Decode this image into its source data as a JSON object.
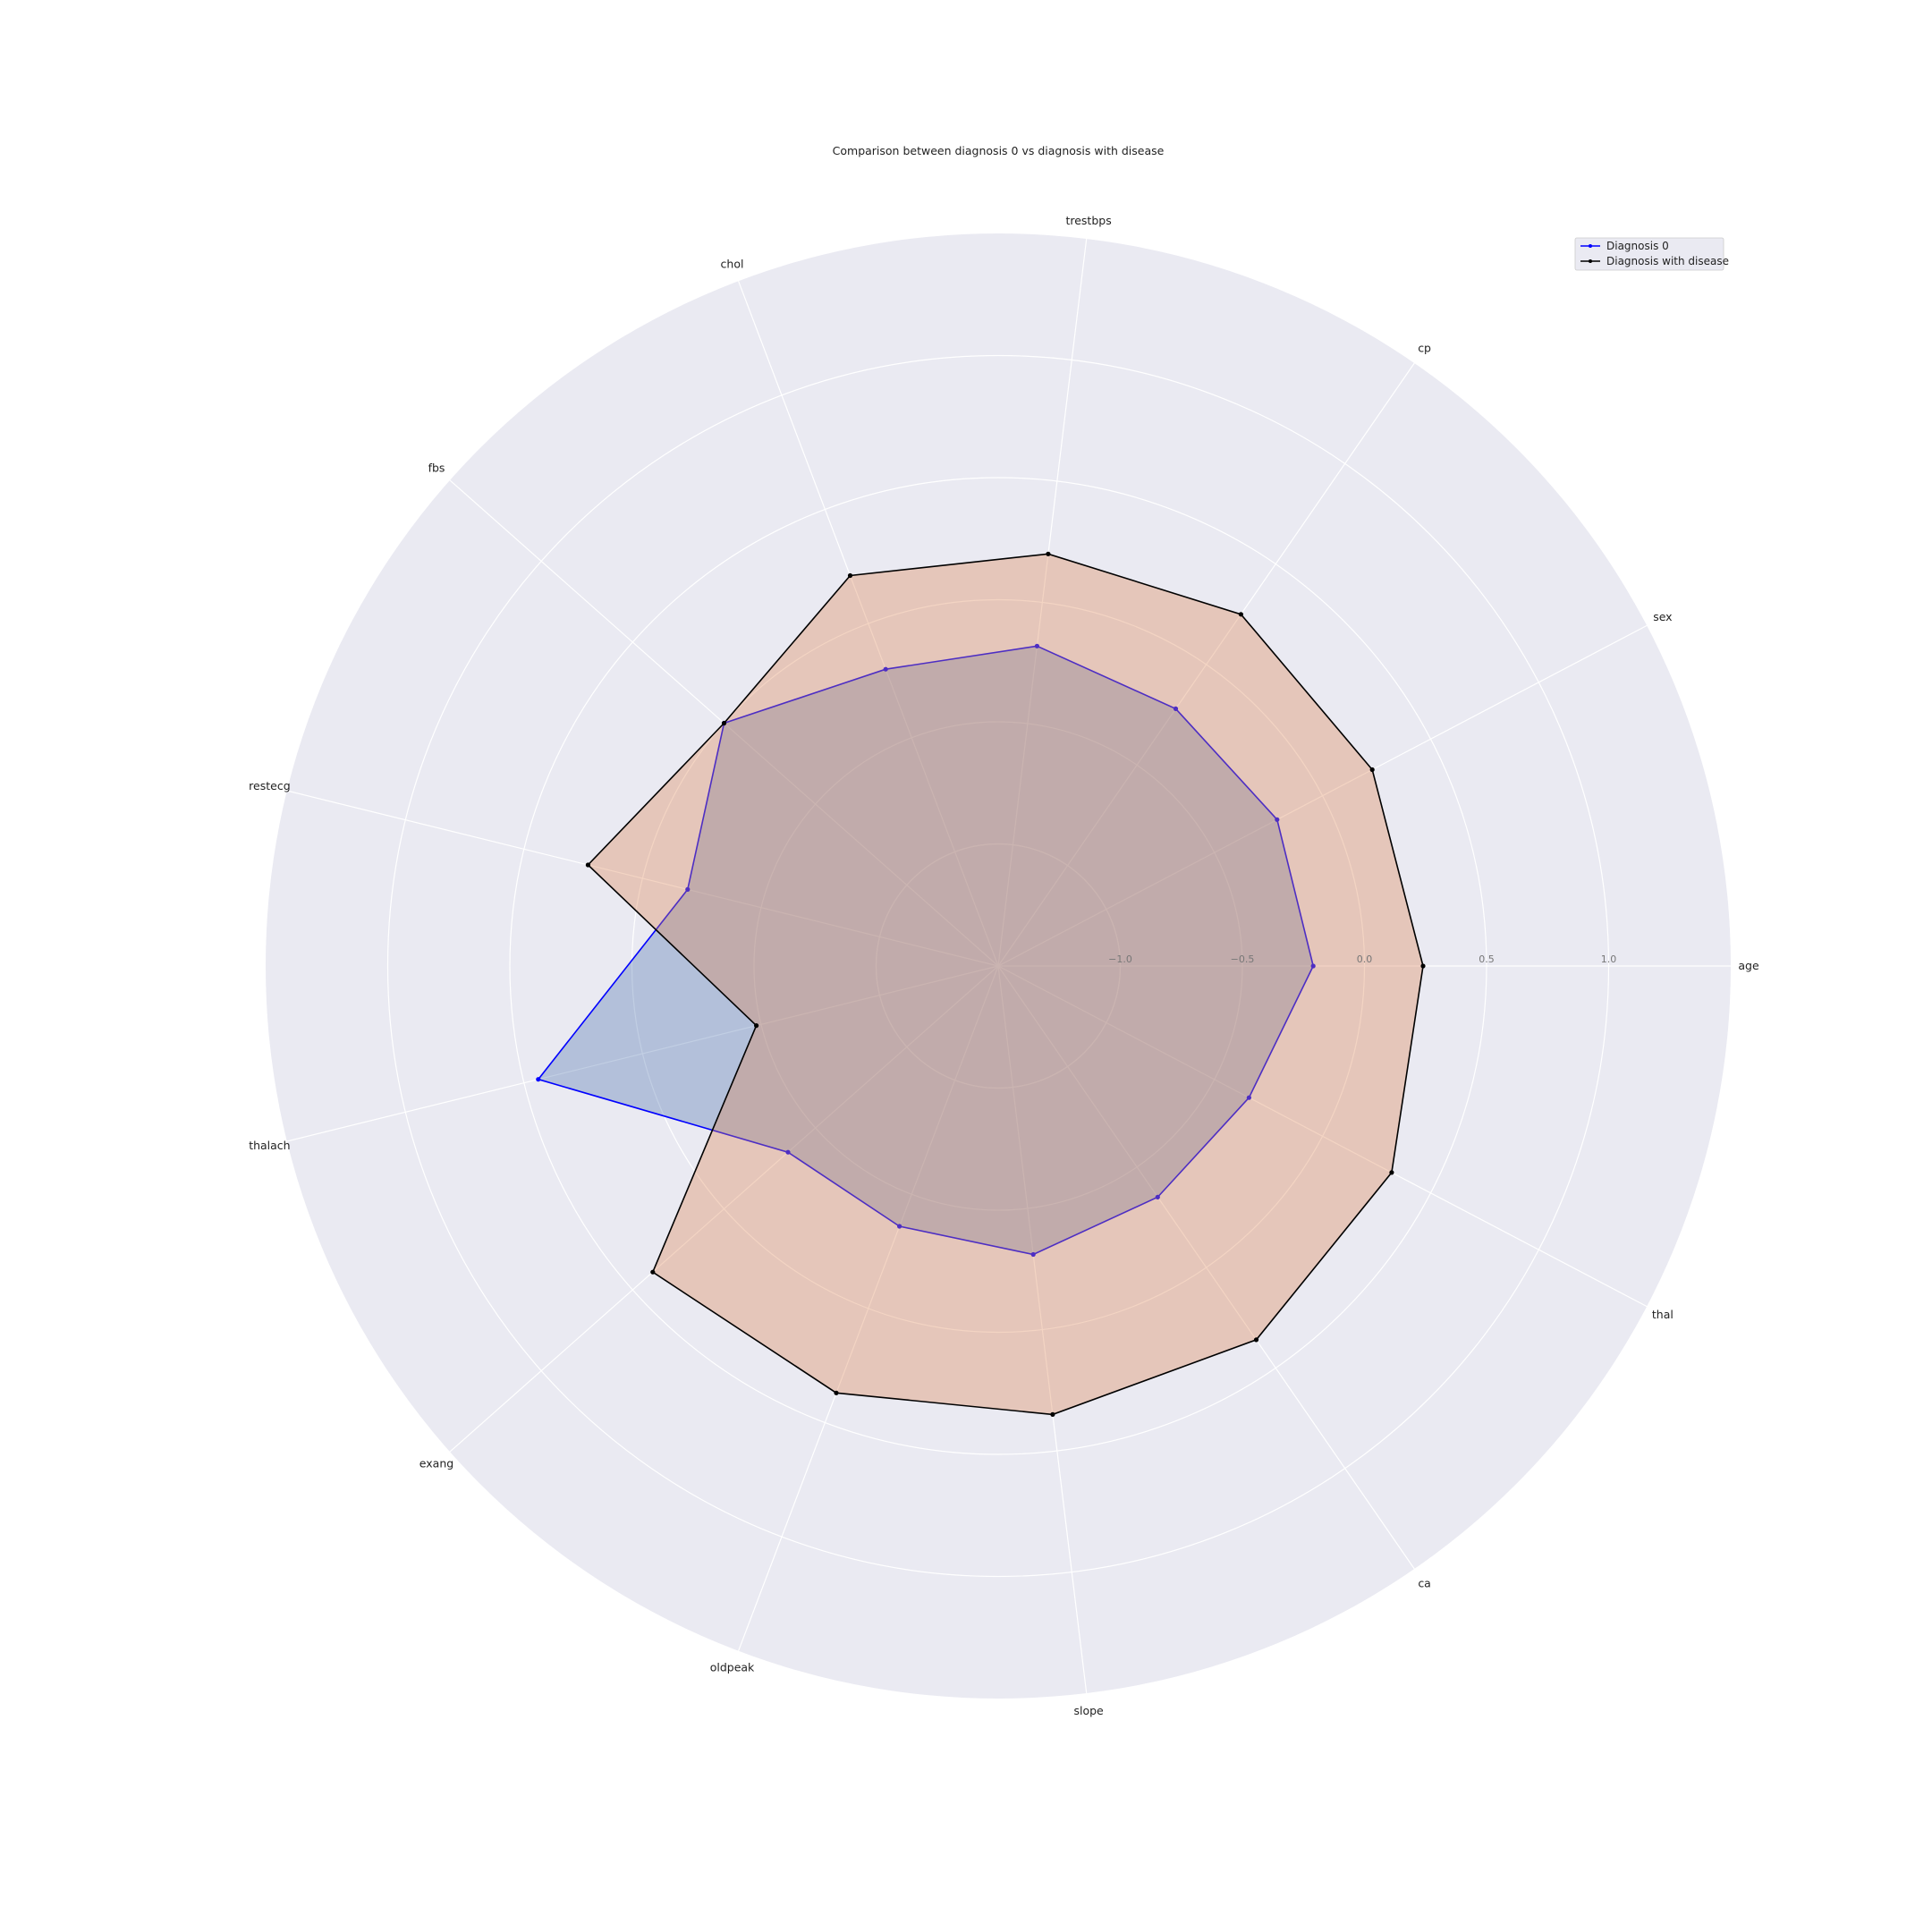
{
  "chart_data": {
    "type": "radar",
    "title": "Comparison between diagnosis 0 vs diagnosis with disease",
    "categories": [
      "age",
      "sex",
      "cp",
      "trestbps",
      "chol",
      "fbs",
      "restecg",
      "thalach",
      "exang",
      "oldpeak",
      "slope",
      "ca",
      "thal"
    ],
    "radial_ticks": [
      "−1.0",
      "−0.5",
      "0.0",
      "0.5",
      "1.0"
    ],
    "rlim": [
      -1.5,
      1.5
    ],
    "grid": true,
    "legend_position": "upper right",
    "series": [
      {
        "name": "Diagnosis 0",
        "color": "#0000ff",
        "fill": "#4c72b0",
        "values": [
          -0.21,
          -0.21,
          -0.22,
          -0.18,
          -0.2,
          0.0,
          -0.19,
          0.44,
          -0.35,
          -0.36,
          -0.31,
          -0.35,
          -0.34
        ]
      },
      {
        "name": "Diagnosis with disease",
        "color": "#000000",
        "fill": "#dd8452",
        "values": [
          0.24,
          0.23,
          0.25,
          0.2,
          0.21,
          0.0,
          0.23,
          -0.48,
          0.39,
          0.37,
          0.35,
          0.36,
          0.32
        ]
      }
    ]
  }
}
